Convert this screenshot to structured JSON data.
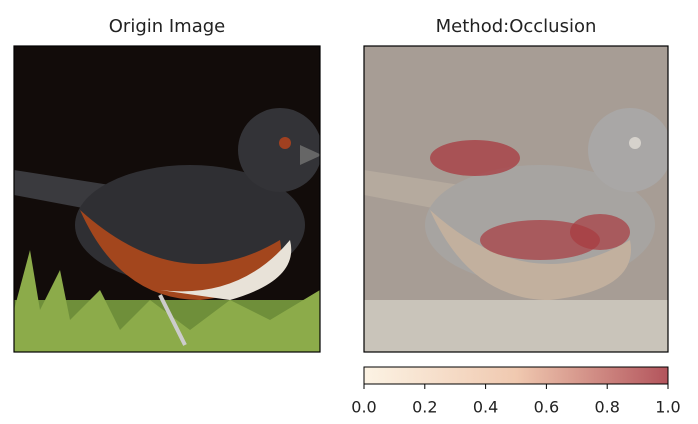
{
  "chart_data": [
    {
      "type": "image",
      "title": "Origin Image"
    },
    {
      "type": "heatmap",
      "title": "Method:Occlusion",
      "colorbar": {
        "lim": [
          0,
          1
        ],
        "ticks": [
          {
            "value": 0,
            "label": "0.0"
          },
          0.2,
          0.4,
          0.6,
          0.8,
          {
            "value": 1,
            "label": "1.0"
          }
        ],
        "colors": [
          "#fcf3e4",
          "#f0c9b0",
          "#b3545c"
        ]
      }
    }
  ]
}
